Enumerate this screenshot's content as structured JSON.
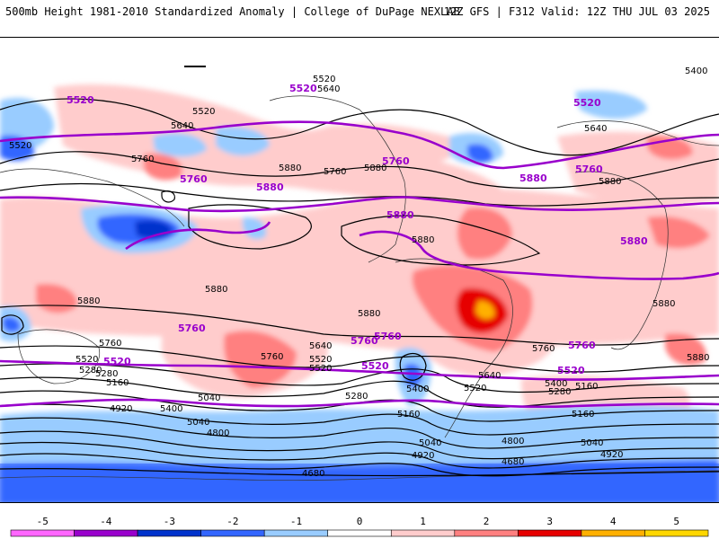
{
  "header": {
    "title": "500mb Height 1981-2010 Standardized Anomaly | College of DuPage NEXLAB",
    "run_info": "12Z GFS | F312 Valid: 12Z THU JUL 03 2025"
  },
  "colorbar": {
    "ticks": [
      "-5",
      "-4",
      "-3",
      "-2",
      "-1",
      "0",
      "1",
      "2",
      "3",
      "4",
      "5"
    ],
    "colors": [
      "#ff66ff",
      "#9900cc",
      "#0033cc",
      "#3366ff",
      "#99ccff",
      "#ffffff",
      "#ffcccc",
      "#ff8080",
      "#e60000",
      "#ffb000",
      "#ffd700"
    ]
  },
  "map": {
    "purple_labels": [
      {
        "text": "5520"
      },
      {
        "text": "5520"
      },
      {
        "text": "5520"
      },
      {
        "text": "5760"
      },
      {
        "text": "5880"
      },
      {
        "text": "5760"
      },
      {
        "text": "5880"
      },
      {
        "text": "5760"
      },
      {
        "text": "5880"
      },
      {
        "text": "5880"
      },
      {
        "text": "5760"
      },
      {
        "text": "5760"
      },
      {
        "text": "5760"
      },
      {
        "text": "5520"
      },
      {
        "text": "5520"
      },
      {
        "text": "5520"
      },
      {
        "text": "5760"
      }
    ],
    "black_labels": [
      {
        "text": "5520"
      },
      {
        "text": "5640"
      },
      {
        "text": "5400"
      },
      {
        "text": "5520"
      },
      {
        "text": "5640"
      },
      {
        "text": "5520"
      },
      {
        "text": "5640"
      },
      {
        "text": "5760"
      },
      {
        "text": "5880"
      },
      {
        "text": "5760"
      },
      {
        "text": "5880"
      },
      {
        "text": "5880"
      },
      {
        "text": "5880"
      },
      {
        "text": "5880"
      },
      {
        "text": "5880"
      },
      {
        "text": "5880"
      },
      {
        "text": "5880"
      },
      {
        "text": "5880"
      },
      {
        "text": "5760"
      },
      {
        "text": "5640"
      },
      {
        "text": "5520"
      },
      {
        "text": "5400"
      },
      {
        "text": "5280"
      },
      {
        "text": "5160"
      },
      {
        "text": "5040"
      },
      {
        "text": "4920"
      },
      {
        "text": "4800"
      },
      {
        "text": "4680"
      },
      {
        "text": "5280"
      },
      {
        "text": "5160"
      },
      {
        "text": "5040"
      },
      {
        "text": "5520"
      },
      {
        "text": "5280"
      },
      {
        "text": "5160"
      },
      {
        "text": "5040"
      },
      {
        "text": "4920"
      },
      {
        "text": "4800"
      },
      {
        "text": "4680"
      },
      {
        "text": "5760"
      },
      {
        "text": "5640"
      },
      {
        "text": "5520"
      },
      {
        "text": "5400"
      },
      {
        "text": "5280"
      },
      {
        "text": "5160"
      },
      {
        "text": "5040"
      },
      {
        "text": "4920"
      },
      {
        "text": "5760"
      },
      {
        "text": "5520"
      },
      {
        "text": "5400"
      }
    ]
  }
}
